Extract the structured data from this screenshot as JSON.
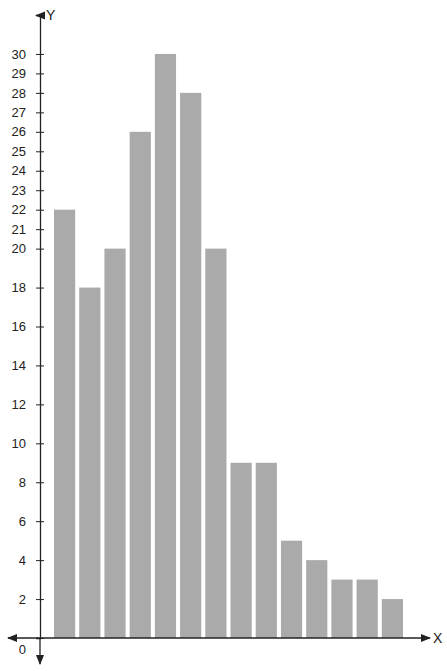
{
  "chart_data": {
    "type": "bar",
    "x_label": "X",
    "y_label": "Y",
    "categories": [
      null,
      null,
      null,
      null,
      null,
      null,
      null,
      null,
      null,
      null,
      null,
      null,
      null,
      null
    ],
    "values": [
      22,
      18,
      20,
      26,
      30,
      28,
      20,
      9,
      9,
      5,
      4,
      3,
      3,
      2
    ],
    "color": "#aaaaaa",
    "ylim": [
      0,
      32
    ],
    "yticks": [
      0,
      2,
      4,
      6,
      8,
      10,
      12,
      14,
      16,
      18,
      20,
      21,
      22,
      23,
      24,
      25,
      26,
      27,
      28,
      29,
      30
    ],
    "tick_labels": "y",
    "grid": false
  }
}
